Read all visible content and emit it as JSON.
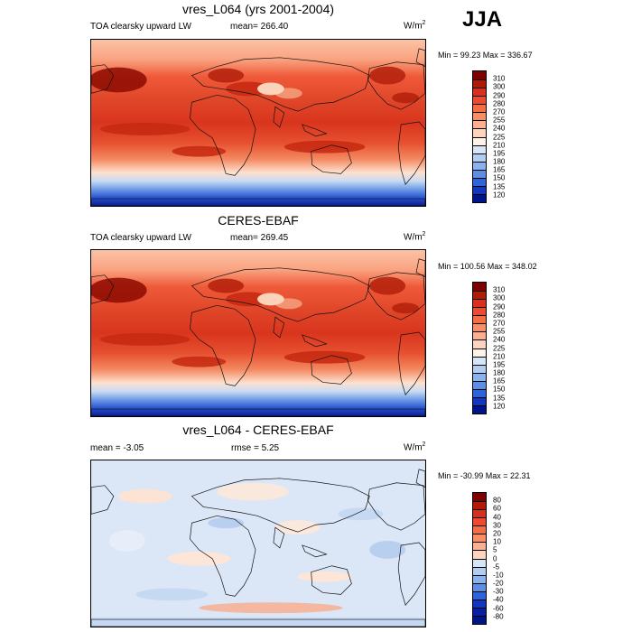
{
  "season": "JJA",
  "panels": [
    {
      "title": "vres_L064 (yrs 2001-2004)",
      "left_label": "TOA clearsky upward LW",
      "stat_label": "mean= 266.40",
      "unit_base": "W/m",
      "unit_exp": "2",
      "minmax": "Min = 99.23 Max = 336.67",
      "colorbar_labels": [
        "310",
        "300",
        "290",
        "280",
        "270",
        "255",
        "240",
        "225",
        "210",
        "195",
        "180",
        "165",
        "150",
        "135",
        "120"
      ],
      "colorbar_colors": [
        "#7f0000",
        "#b31a06",
        "#d7301f",
        "#ef4a30",
        "#f46d43",
        "#f98e65",
        "#fbb091",
        "#fdd5be",
        "#fff2e6",
        "#d6e6f7",
        "#b1cdf1",
        "#8ab2ec",
        "#5a8fe5",
        "#2f63d9",
        "#1236c4",
        "#00148a"
      ],
      "map_kind": "abs"
    },
    {
      "title": "CERES-EBAF",
      "left_label": "TOA clearsky upward LW",
      "stat_label": "mean= 269.45",
      "unit_base": "W/m",
      "unit_exp": "2",
      "minmax": "Min = 100.56 Max = 348.02",
      "colorbar_labels": [
        "310",
        "300",
        "290",
        "280",
        "270",
        "255",
        "240",
        "225",
        "210",
        "195",
        "180",
        "165",
        "150",
        "135",
        "120"
      ],
      "colorbar_colors": [
        "#7f0000",
        "#b31a06",
        "#d7301f",
        "#ef4a30",
        "#f46d43",
        "#f98e65",
        "#fbb091",
        "#fdd5be",
        "#fff2e6",
        "#d6e6f7",
        "#b1cdf1",
        "#8ab2ec",
        "#5a8fe5",
        "#2f63d9",
        "#1236c4",
        "#00148a"
      ],
      "map_kind": "abs2"
    },
    {
      "title": "vres_L064 - CERES-EBAF",
      "left_label": "mean =  -3.05",
      "stat_label": "rmse =  5.25",
      "unit_base": "W/m",
      "unit_exp": "2",
      "minmax": "Min = -30.99 Max =  22.31",
      "colorbar_labels": [
        "80",
        "60",
        "40",
        "30",
        "20",
        "10",
        "5",
        "0",
        "-5",
        "-10",
        "-20",
        "-30",
        "-40",
        "-60",
        "-80"
      ],
      "colorbar_colors": [
        "#7f0000",
        "#b31a06",
        "#d7301f",
        "#ef4a30",
        "#f46d43",
        "#f98e65",
        "#fbb091",
        "#fdd5be",
        "#d6e6f7",
        "#b1cdf1",
        "#8ab2ec",
        "#5a8fe5",
        "#2f63d9",
        "#1236c4",
        "#0a1fa0",
        "#00148a"
      ],
      "map_kind": "diff"
    }
  ]
}
